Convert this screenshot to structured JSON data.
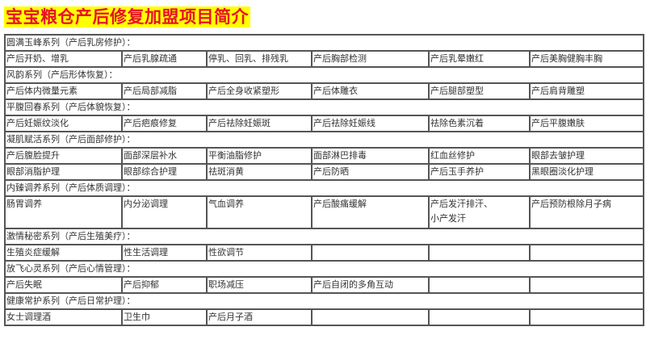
{
  "title": "宝宝粮仓产后修复加盟项目简介",
  "sections": [
    {
      "heading": "圆满玉峰系列（产后乳房修护）：",
      "rows": [
        [
          "产后开奶、增乳",
          "产后乳腺疏通",
          "停乳、回乳、排残乳",
          "产后胸部检测",
          "产后乳晕嫩红",
          "产后美胸健胸丰胸"
        ]
      ]
    },
    {
      "heading": "风韵系列（产后形体恢复）：",
      "rows": [
        [
          "产后体内微量元素",
          "产后局部减脂",
          "产后全身收紧塑形",
          "产后体雕衣",
          "产后腿部塑型",
          "产后肩背雕塑"
        ]
      ]
    },
    {
      "heading": "平腹回春系列（产后体貌恢复）：",
      "rows": [
        [
          "产后妊娠纹淡化",
          "产后疤痕修复",
          "产后祛除妊娠斑",
          "产后祛除妊娠线",
          "祛除色素沉着",
          "产后平腹嫩肤"
        ]
      ]
    },
    {
      "heading": "凝肌赋活系列（产后面部修护）：",
      "rows": [
        [
          "产后腹脸提升",
          "面部深层补水",
          "平衡油脂修护",
          "面部淋巴排毒",
          "红血丝修护",
          "眼部去皱护理"
        ],
        [
          "眼部消脂护理",
          "眼部综合护理",
          "祛斑消黄",
          "产后防晒",
          "产后玉手养护",
          "黑眼圈淡化护理"
        ]
      ]
    },
    {
      "heading": "内臻调养系列（产后体质调理）：",
      "tall": true,
      "rows": [
        [
          "肠胃调养",
          "内分泌调理",
          "气血调养",
          "产后酸痛缓解",
          "产后发汗排汗、小产发汗",
          "产后预防根除月子病"
        ]
      ]
    },
    {
      "heading": "激情秘密系列（产后生殖美疗）：",
      "rows": [
        [
          "生殖炎症缓解",
          "性生活调理",
          "性欲调节",
          "",
          "",
          ""
        ]
      ]
    },
    {
      "heading": "放飞心灵系列（产后心情管理）：",
      "rows": [
        [
          "产后失眠",
          "产后抑郁",
          "职场减压",
          "产后自闭的多角互动",
          "",
          ""
        ]
      ]
    },
    {
      "heading": "健康常护系列（产后日常护理）：",
      "rows": [
        [
          "女士调理酒",
          "卫生巾",
          "产后月子酒",
          "",
          "",
          ""
        ]
      ]
    }
  ]
}
